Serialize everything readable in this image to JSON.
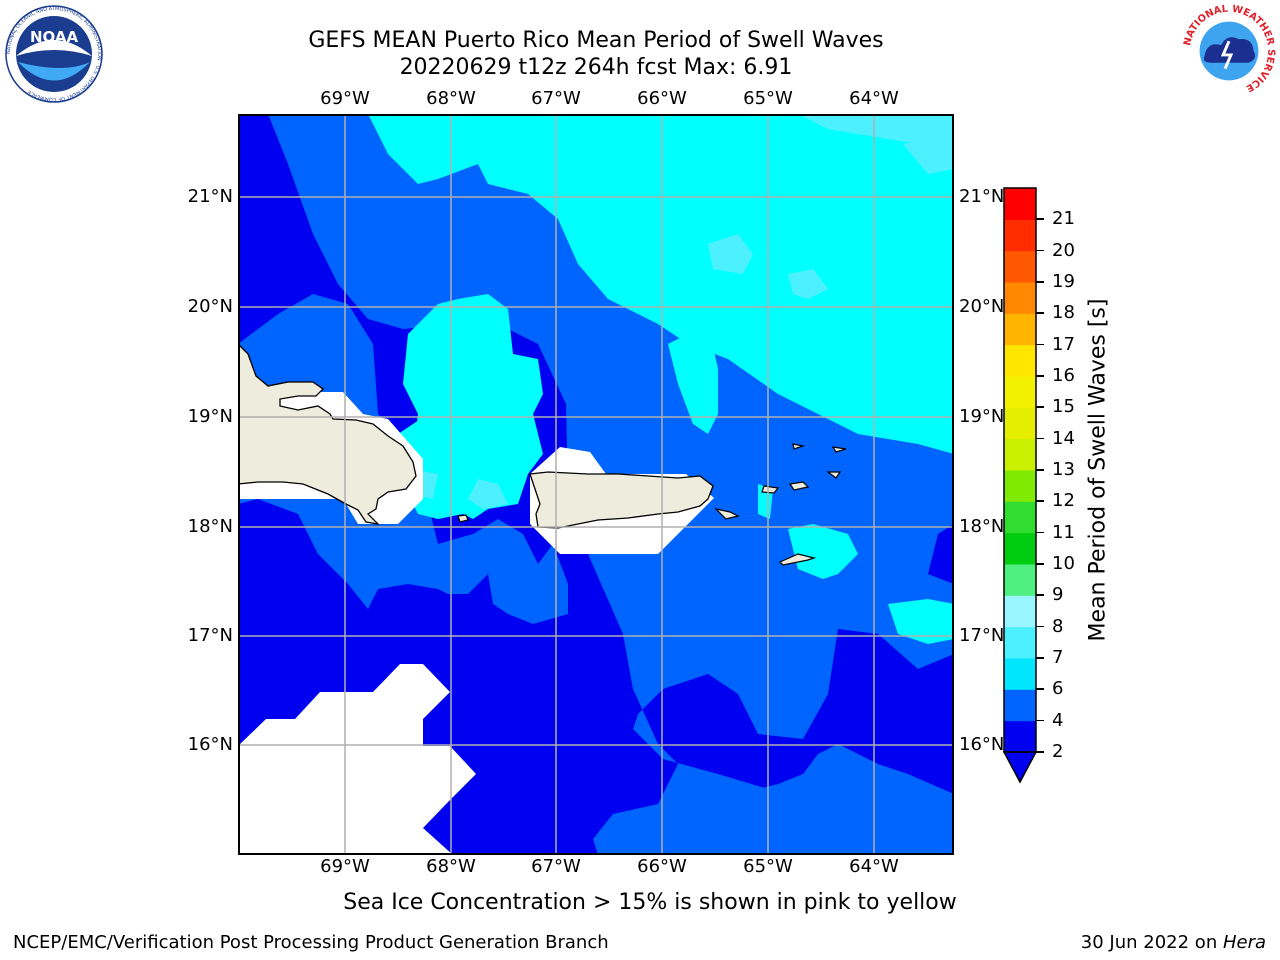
{
  "header": {
    "title_line1": "GEFS MEAN Puerto Rico Mean Period of Swell Waves",
    "title_line2": "20220629 t12z 264h fcst   Max: 6.91"
  },
  "logos": {
    "left": "NOAA",
    "left_ring_text": "NATIONAL OCEANIC AND ATMOSPHERIC ADMINISTRATION · U.S. DEPARTMENT OF COMMERCE",
    "right_ring_text": "NATIONAL WEATHER SERVICE"
  },
  "map": {
    "lon_labels": [
      "69°W",
      "68°W",
      "67°W",
      "66°W",
      "65°W",
      "64°W"
    ],
    "lat_labels": [
      "21°N",
      "20°N",
      "19°N",
      "18°N",
      "17°N",
      "16°N"
    ],
    "land_color": "#eeecdc",
    "gridline_color": "#b0b0b0"
  },
  "colorbar": {
    "label": "Mean Period of Swell Waves [s]",
    "tick_labels": [
      "2",
      "4",
      "6",
      "7",
      "8",
      "9",
      "10",
      "11",
      "12",
      "13",
      "14",
      "15",
      "16",
      "17",
      "18",
      "19",
      "20",
      "21"
    ],
    "colors": [
      "#0000f0",
      "#0064ff",
      "#00e6ff",
      "#4df0ff",
      "#99f5ff",
      "#50f080",
      "#00cc10",
      "#30dd30",
      "#80ea00",
      "#c8f000",
      "#e6ee00",
      "#f2f200",
      "#ffe600",
      "#ffb400",
      "#ff8800",
      "#ff5800",
      "#ff2c00",
      "#ff0000"
    ]
  },
  "footer": {
    "note": "Sea Ice Concentration > 15% is shown in pink to yellow",
    "left": "NCEP/EMC/Verification Post Processing Product Generation Branch",
    "right_prefix": "30 Jun 2022 on ",
    "right_host": "Hera"
  }
}
